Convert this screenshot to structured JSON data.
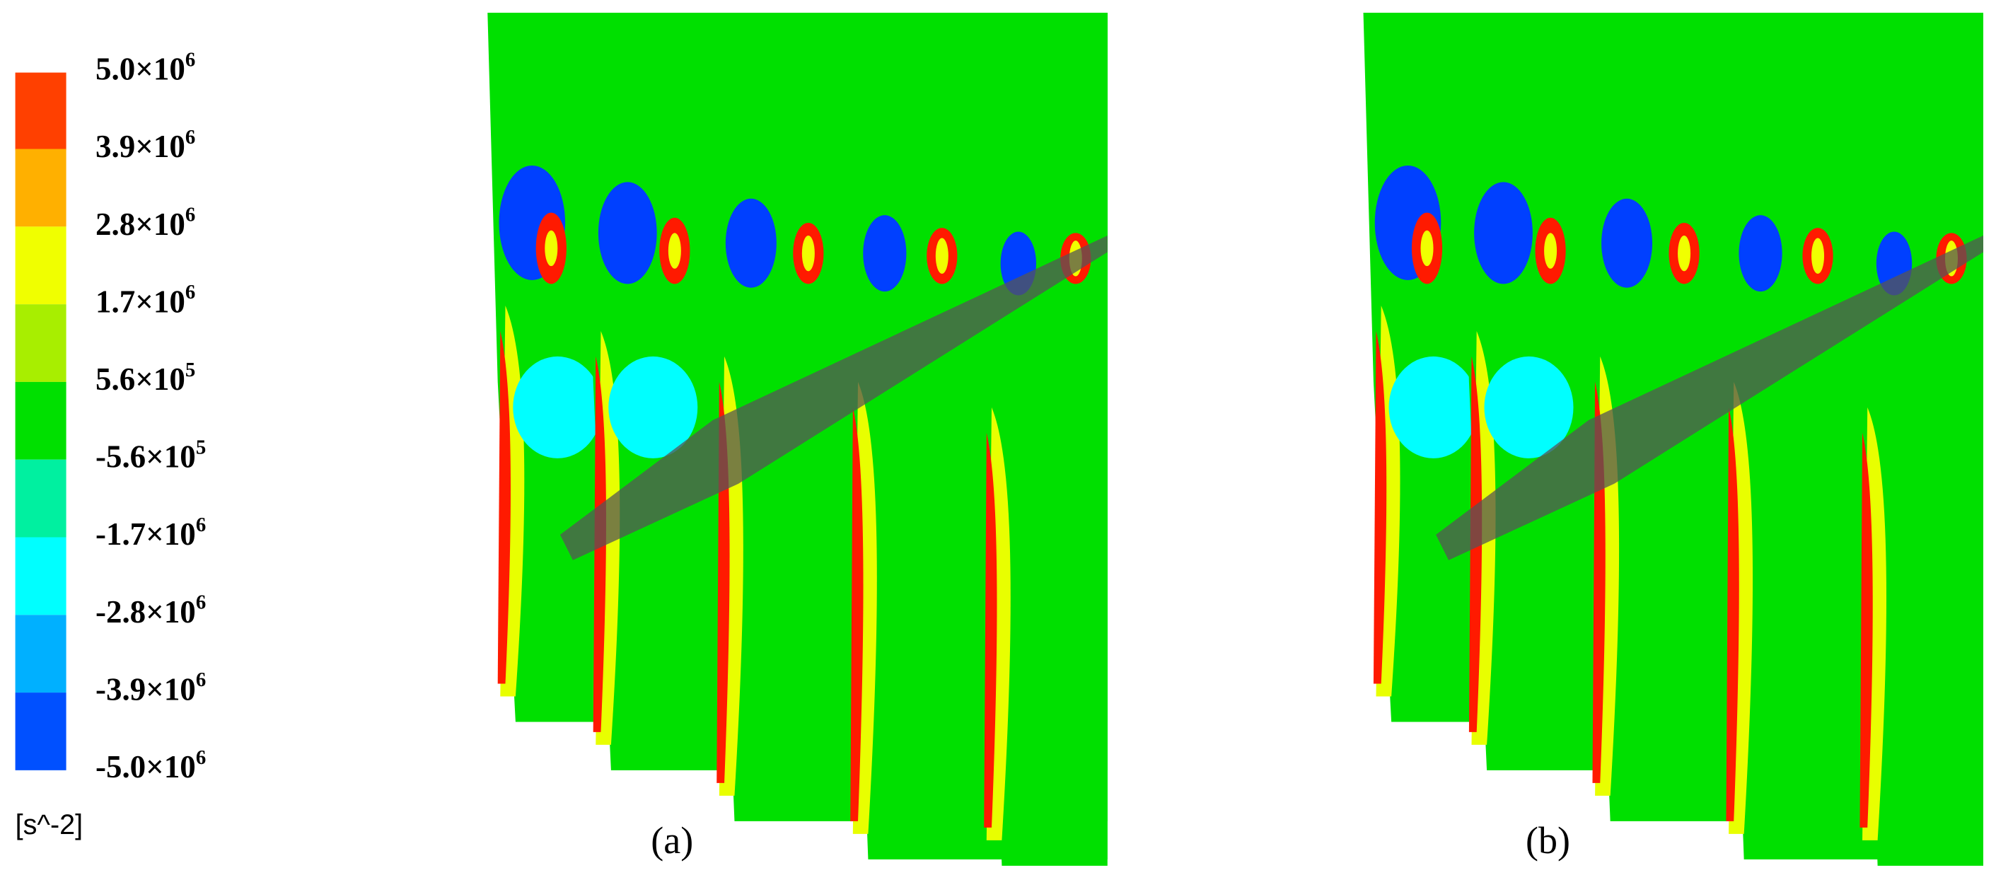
{
  "colorbar": {
    "labels": [
      {
        "base": "5.0×10",
        "exp": "6"
      },
      {
        "base": "3.9×10",
        "exp": "6"
      },
      {
        "base": "2.8×10",
        "exp": "6"
      },
      {
        "base": "1.7×10",
        "exp": "6"
      },
      {
        "base": "5.6×10",
        "exp": "5"
      },
      {
        "base": "-5.6×10",
        "exp": "5"
      },
      {
        "base": "-1.7×10",
        "exp": "6"
      },
      {
        "base": "-2.8×10",
        "exp": "6"
      },
      {
        "base": "-3.9×10",
        "exp": "6"
      },
      {
        "base": "-5.0×10",
        "exp": "6"
      }
    ],
    "unit": "[s^-2]"
  },
  "panels": [
    {
      "label": "(a)"
    },
    {
      "label": "(b)"
    }
  ]
}
